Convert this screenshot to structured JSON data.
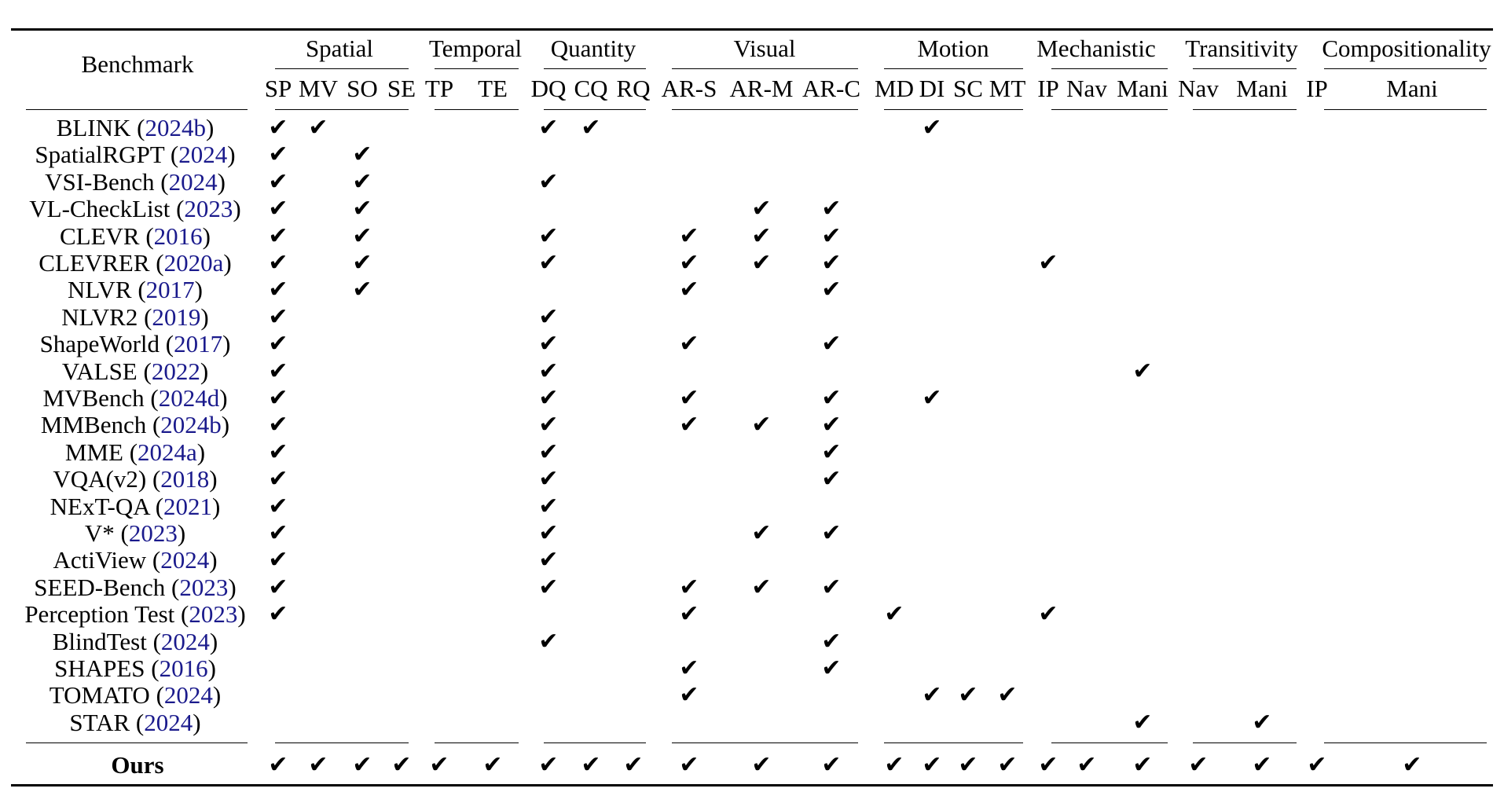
{
  "header": {
    "benchmark_label": "Benchmark",
    "groups": [
      {
        "label": "Spatial",
        "subs": [
          "SP",
          "MV",
          "SO",
          "SE"
        ]
      },
      {
        "label": "Temporal",
        "subs": [
          "TP",
          "TE"
        ]
      },
      {
        "label": "Quantity",
        "subs": [
          "DQ",
          "CQ",
          "RQ"
        ]
      },
      {
        "label": "Visual",
        "subs": [
          "AR-S",
          "AR-M",
          "AR-C"
        ]
      },
      {
        "label": "Motion",
        "subs": [
          "MD",
          "DI",
          "SC",
          "MT"
        ]
      },
      {
        "label": "Mechanistic",
        "subs": [
          "IP",
          "Nav",
          "Mani"
        ]
      },
      {
        "label": "Transitivity",
        "subs": [
          "Nav",
          "Mani"
        ]
      },
      {
        "label": "Compositionality",
        "subs": [
          "IP",
          "Mani"
        ]
      }
    ]
  },
  "check_symbol": "✔",
  "rows": [
    {
      "name": "BLINK",
      "year": "2024b",
      "checks": [
        "SP",
        "MV",
        "DQ",
        "CQ",
        "DI"
      ]
    },
    {
      "name": "SpatialRGPT",
      "year": "2024",
      "checks": [
        "SP",
        "SO"
      ]
    },
    {
      "name": "VSI-Bench",
      "year": "2024",
      "checks": [
        "SP",
        "SO",
        "DQ"
      ]
    },
    {
      "name": "VL-CheckList",
      "year": "2023",
      "checks": [
        "SP",
        "SO",
        "AR-M",
        "AR-C"
      ]
    },
    {
      "name": "CLEVR",
      "year": "2016",
      "checks": [
        "SP",
        "SO",
        "DQ",
        "AR-S",
        "AR-M",
        "AR-C"
      ]
    },
    {
      "name": "CLEVRER",
      "year": "2020a",
      "checks": [
        "SP",
        "SO",
        "DQ",
        "AR-S",
        "AR-M",
        "AR-C",
        "MIP"
      ]
    },
    {
      "name": "NLVR",
      "year": "2017",
      "checks": [
        "SP",
        "SO",
        "AR-S",
        "AR-C"
      ]
    },
    {
      "name": "NLVR2",
      "year": "2019",
      "checks": [
        "SP",
        "DQ"
      ]
    },
    {
      "name": "ShapeWorld",
      "year": "2017",
      "checks": [
        "SP",
        "DQ",
        "AR-S",
        "AR-C"
      ]
    },
    {
      "name": "VALSE",
      "year": "2022",
      "checks": [
        "SP",
        "DQ",
        "MMani"
      ]
    },
    {
      "name": "MVBench",
      "year": "2024d",
      "checks": [
        "SP",
        "DQ",
        "AR-S",
        "AR-C",
        "DI"
      ]
    },
    {
      "name": "MMBench",
      "year": "2024b",
      "checks": [
        "SP",
        "DQ",
        "AR-S",
        "AR-M",
        "AR-C"
      ]
    },
    {
      "name": "MME",
      "year": "2024a",
      "checks": [
        "SP",
        "DQ",
        "AR-C"
      ]
    },
    {
      "name": "VQA(v2)",
      "year": "2018",
      "checks": [
        "SP",
        "DQ",
        "AR-C"
      ]
    },
    {
      "name": "NExT-QA",
      "year": "2021",
      "checks": [
        "SP",
        "DQ"
      ]
    },
    {
      "name": "V*",
      "year": "2023",
      "checks": [
        "SP",
        "DQ",
        "AR-M",
        "AR-C"
      ]
    },
    {
      "name": "ActiView",
      "year": "2024",
      "checks": [
        "SP",
        "DQ"
      ]
    },
    {
      "name": "SEED-Bench",
      "year": "2023",
      "checks": [
        "SP",
        "DQ",
        "AR-S",
        "AR-M",
        "AR-C"
      ]
    },
    {
      "name": "Perception Test",
      "year": "2023",
      "checks": [
        "SP",
        "AR-S",
        "MD",
        "MIP"
      ]
    },
    {
      "name": "BlindTest",
      "year": "2024",
      "checks": [
        "DQ",
        "AR-C"
      ]
    },
    {
      "name": "SHAPES",
      "year": "2016",
      "checks": [
        "AR-S",
        "AR-C"
      ]
    },
    {
      "name": "TOMATO",
      "year": "2024",
      "checks": [
        "AR-S",
        "DI",
        "SC",
        "MT"
      ]
    },
    {
      "name": "STAR",
      "year": "2024",
      "checks": [
        "MMani",
        "TMani"
      ]
    }
  ],
  "ours": {
    "label": "Ours",
    "checks": [
      "SP",
      "MV",
      "SO",
      "SE",
      "TP",
      "TE",
      "DQ",
      "CQ",
      "RQ",
      "AR-S",
      "AR-M",
      "AR-C",
      "MD",
      "DI",
      "SC",
      "MT",
      "MIP",
      "MNav",
      "MMani",
      "TNav",
      "TMani",
      "CIP",
      "CMani"
    ]
  }
}
